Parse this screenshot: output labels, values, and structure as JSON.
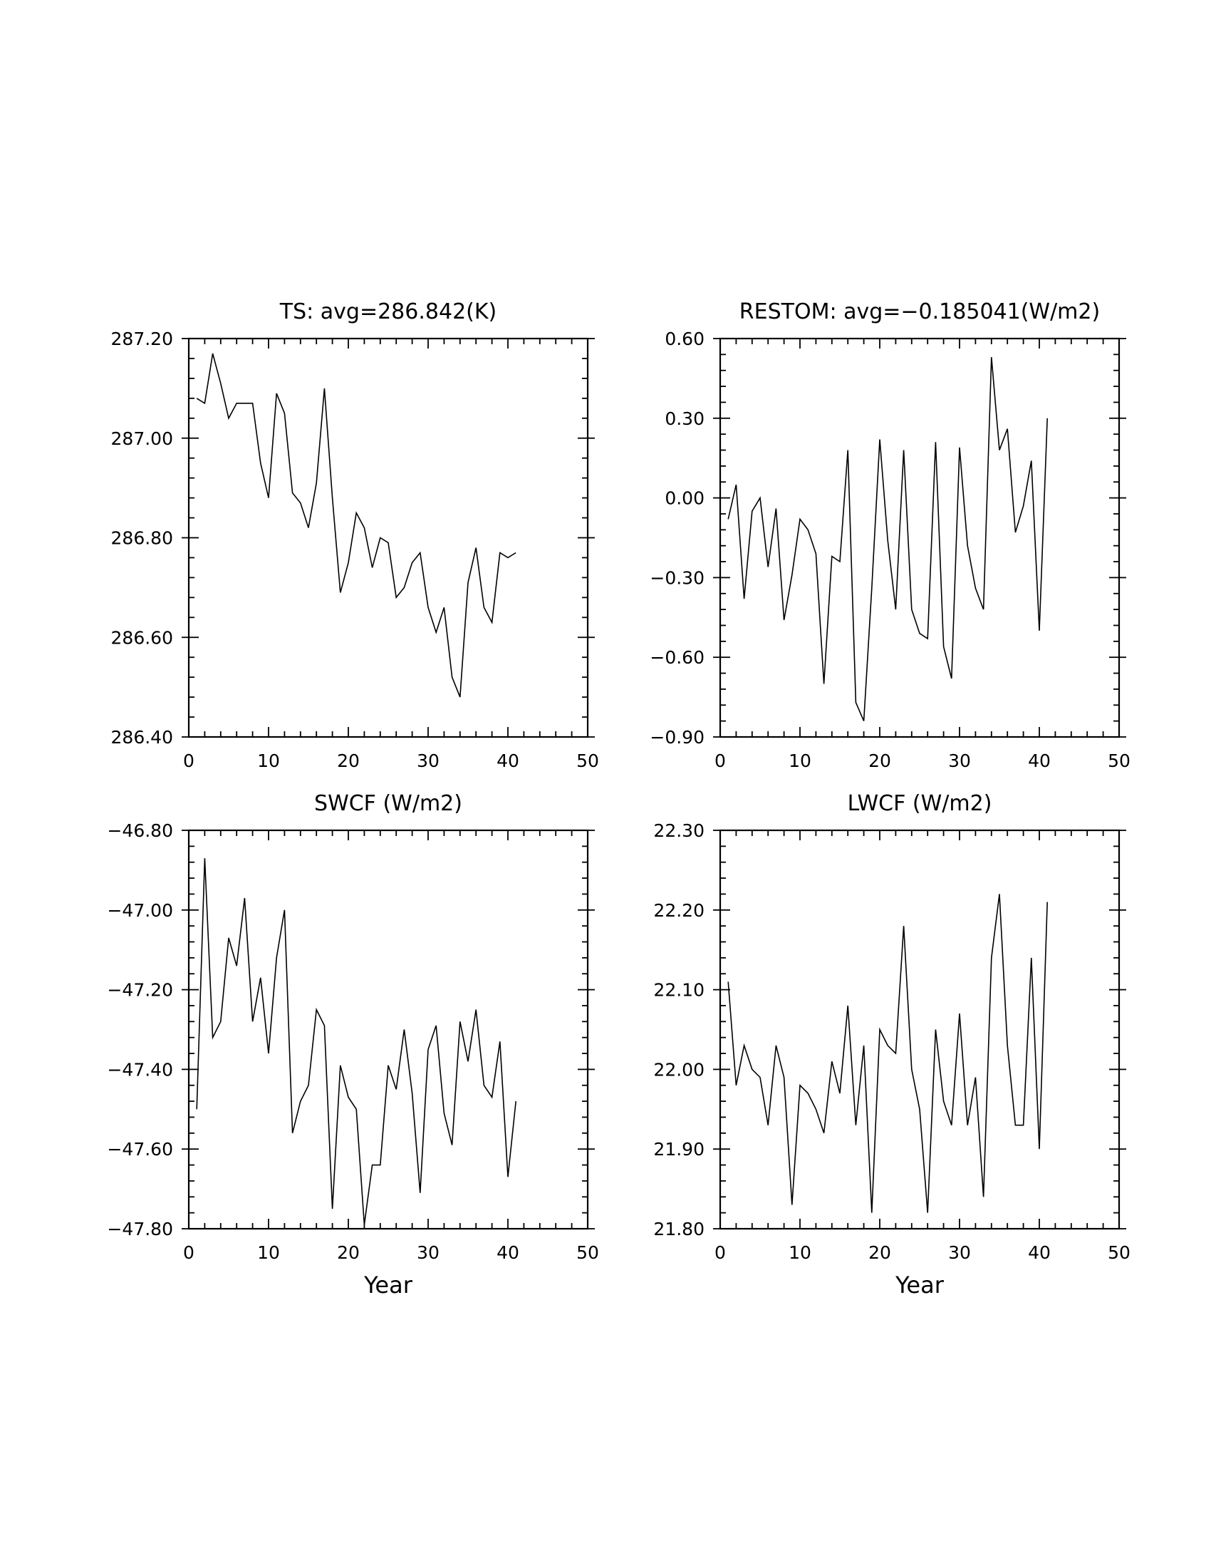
{
  "chart_data": [
    {
      "type": "line",
      "title": "TS: avg=286.842(K)",
      "xlabel": "",
      "ylabel": "",
      "xlim": [
        0,
        50
      ],
      "ylim": [
        286.4,
        287.2
      ],
      "xticks": [
        "0",
        "10",
        "20",
        "30",
        "40",
        "50"
      ],
      "yticks": [
        "286.40",
        "286.60",
        "286.80",
        "287.00",
        "287.20"
      ],
      "grid": false,
      "series": [
        {
          "x": [
            1,
            2,
            3,
            4,
            5,
            6,
            7,
            8,
            9,
            10,
            11,
            12,
            13,
            14,
            15,
            16,
            17,
            18,
            19,
            20,
            21,
            22,
            23,
            24,
            25,
            26,
            27,
            28,
            29,
            30,
            31,
            32,
            33,
            34,
            35,
            36,
            37,
            38,
            39,
            40,
            41
          ],
          "y": [
            287.08,
            287.07,
            287.17,
            287.11,
            287.04,
            287.07,
            287.07,
            287.07,
            286.95,
            286.88,
            287.09,
            287.05,
            286.89,
            286.87,
            286.82,
            286.91,
            287.1,
            286.88,
            286.69,
            286.75,
            286.85,
            286.82,
            286.74,
            286.8,
            286.79,
            286.68,
            286.7,
            286.75,
            286.77,
            286.66,
            286.61,
            286.66,
            286.52,
            286.48,
            286.71,
            286.78,
            286.66,
            286.63,
            286.77,
            286.76,
            286.77
          ]
        }
      ]
    },
    {
      "type": "line",
      "title": "RESTOM: avg=−0.185041(W/m2)",
      "xlabel": "",
      "ylabel": "",
      "xlim": [
        0,
        50
      ],
      "ylim": [
        -0.9,
        0.6
      ],
      "xticks": [
        "0",
        "10",
        "20",
        "30",
        "40",
        "50"
      ],
      "yticks": [
        "−0.90",
        "−0.60",
        "−0.30",
        "0.00",
        "0.30",
        "0.60"
      ],
      "grid": false,
      "series": [
        {
          "x": [
            1,
            2,
            3,
            4,
            5,
            6,
            7,
            8,
            9,
            10,
            11,
            12,
            13,
            14,
            15,
            16,
            17,
            18,
            19,
            20,
            21,
            22,
            23,
            24,
            25,
            26,
            27,
            28,
            29,
            30,
            31,
            32,
            33,
            34,
            35,
            36,
            37,
            38,
            39,
            40,
            41
          ],
          "y": [
            -0.08,
            0.05,
            -0.38,
            -0.05,
            0.0,
            -0.26,
            -0.04,
            -0.46,
            -0.29,
            -0.08,
            -0.12,
            -0.21,
            -0.7,
            -0.22,
            -0.24,
            0.18,
            -0.77,
            -0.84,
            -0.34,
            0.22,
            -0.16,
            -0.42,
            0.18,
            -0.42,
            -0.51,
            -0.53,
            0.21,
            -0.56,
            -0.68,
            0.19,
            -0.18,
            -0.34,
            -0.42,
            0.53,
            0.18,
            0.26,
            -0.13,
            -0.03,
            0.14,
            -0.5,
            0.3
          ]
        }
      ]
    },
    {
      "type": "line",
      "title": "SWCF (W/m2)",
      "xlabel": "Year",
      "ylabel": "",
      "xlim": [
        0,
        50
      ],
      "ylim": [
        -47.8,
        -46.8
      ],
      "xticks": [
        "0",
        "10",
        "20",
        "30",
        "40",
        "50"
      ],
      "yticks": [
        "−47.80",
        "−47.60",
        "−47.40",
        "−47.20",
        "−47.00",
        "−46.80"
      ],
      "grid": false,
      "series": [
        {
          "x": [
            1,
            2,
            3,
            4,
            5,
            6,
            7,
            8,
            9,
            10,
            11,
            12,
            13,
            14,
            15,
            16,
            17,
            18,
            19,
            20,
            21,
            22,
            23,
            24,
            25,
            26,
            27,
            28,
            29,
            30,
            31,
            32,
            33,
            34,
            35,
            36,
            37,
            38,
            39,
            40,
            41
          ],
          "y": [
            -47.5,
            -46.87,
            -47.32,
            -47.28,
            -47.07,
            -47.14,
            -46.97,
            -47.28,
            -47.17,
            -47.36,
            -47.12,
            -47.0,
            -47.56,
            -47.48,
            -47.44,
            -47.25,
            -47.29,
            -47.75,
            -47.39,
            -47.47,
            -47.5,
            -47.79,
            -47.64,
            -47.64,
            -47.39,
            -47.45,
            -47.3,
            -47.46,
            -47.71,
            -47.35,
            -47.29,
            -47.51,
            -47.59,
            -47.28,
            -47.38,
            -47.25,
            -47.44,
            -47.47,
            -47.33,
            -47.67,
            -47.48
          ]
        }
      ]
    },
    {
      "type": "line",
      "title": "LWCF (W/m2)",
      "xlabel": "Year",
      "ylabel": "",
      "xlim": [
        0,
        50
      ],
      "ylim": [
        21.8,
        22.3
      ],
      "xticks": [
        "0",
        "10",
        "20",
        "30",
        "40",
        "50"
      ],
      "yticks": [
        "21.80",
        "21.90",
        "22.00",
        "22.10",
        "22.20",
        "22.30"
      ],
      "grid": false,
      "series": [
        {
          "x": [
            1,
            2,
            3,
            4,
            5,
            6,
            7,
            8,
            9,
            10,
            11,
            12,
            13,
            14,
            15,
            16,
            17,
            18,
            19,
            20,
            21,
            22,
            23,
            24,
            25,
            26,
            27,
            28,
            29,
            30,
            31,
            32,
            33,
            34,
            35,
            36,
            37,
            38,
            39,
            40,
            41
          ],
          "y": [
            22.11,
            21.98,
            22.03,
            22.0,
            21.99,
            21.93,
            22.03,
            21.99,
            21.83,
            21.98,
            21.97,
            21.95,
            21.92,
            22.01,
            21.97,
            22.08,
            21.93,
            22.03,
            21.82,
            22.05,
            22.03,
            22.02,
            22.18,
            22.0,
            21.95,
            21.82,
            22.05,
            21.96,
            21.93,
            22.07,
            21.93,
            21.99,
            21.84,
            22.14,
            22.22,
            22.03,
            21.93,
            21.93,
            22.14,
            21.9,
            22.21
          ]
        }
      ]
    }
  ]
}
